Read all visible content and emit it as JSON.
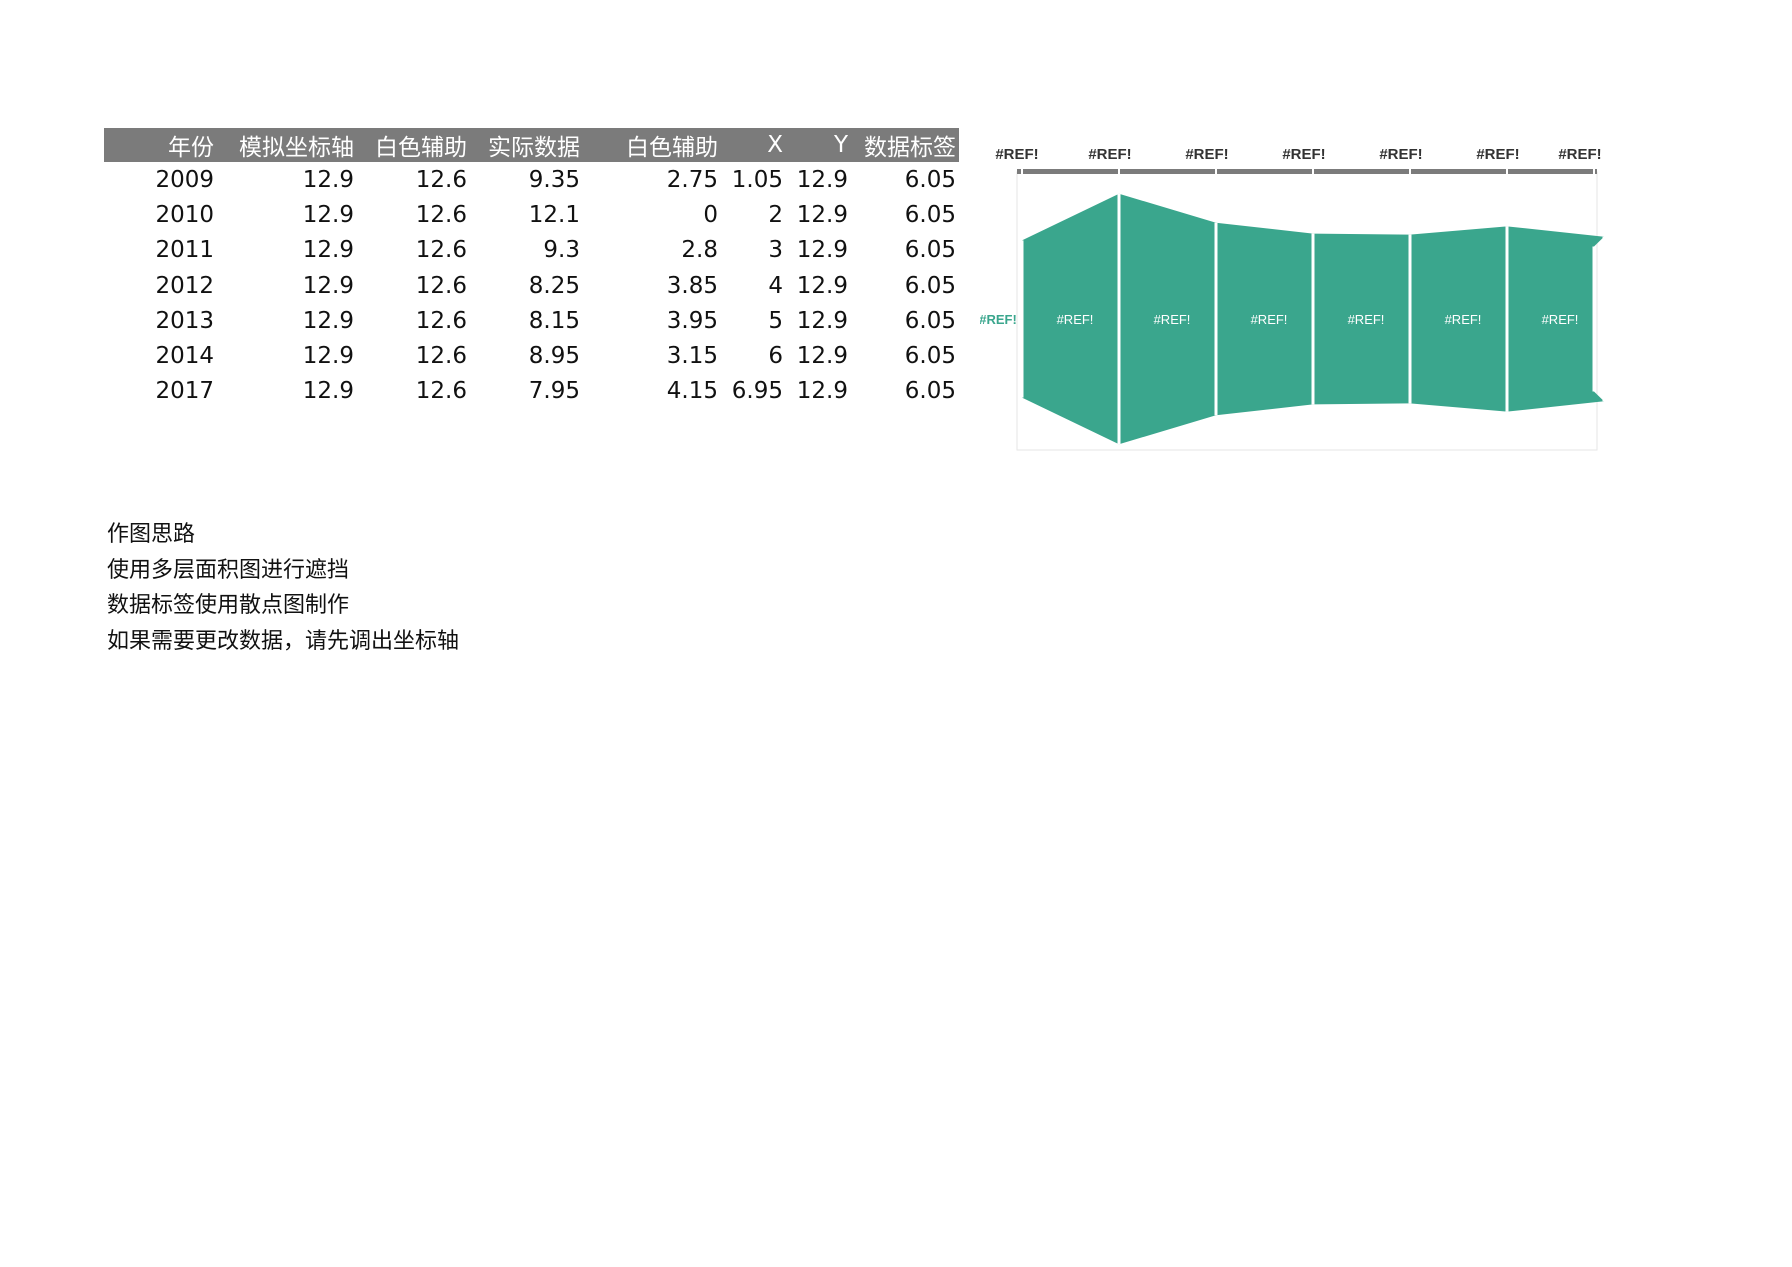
{
  "table": {
    "headers": [
      "年份",
      "模拟坐标轴",
      "白色辅助",
      "实际数据",
      "白色辅助",
      "X",
      "Y",
      "数据标签"
    ],
    "rows": [
      [
        "2009",
        "12.9",
        "12.6",
        "9.35",
        "2.75",
        "1.05",
        "12.9",
        "6.05"
      ],
      [
        "2010",
        "12.9",
        "12.6",
        "12.1",
        "0",
        "2",
        "12.9",
        "6.05"
      ],
      [
        "2011",
        "12.9",
        "12.6",
        "9.3",
        "2.8",
        "3",
        "12.9",
        "6.05"
      ],
      [
        "2012",
        "12.9",
        "12.6",
        "8.25",
        "3.85",
        "4",
        "12.9",
        "6.05"
      ],
      [
        "2013",
        "12.9",
        "12.6",
        "8.15",
        "3.95",
        "5",
        "12.9",
        "6.05"
      ],
      [
        "2014",
        "12.9",
        "12.6",
        "8.95",
        "3.15",
        "6",
        "12.9",
        "6.05"
      ],
      [
        "2017",
        "12.9",
        "12.6",
        "7.95",
        "4.15",
        "6.95",
        "12.9",
        "6.05"
      ]
    ]
  },
  "notes": {
    "line1": "作图思路",
    "line2": "使用多层面积图进行遮挡",
    "line3": "数据标签使用散点图制作",
    "line4": "如果需要更改数据，请先调出坐标轴"
  },
  "chart_data": {
    "type": "area",
    "x": [
      1,
      2,
      3,
      4,
      5,
      6,
      7
    ],
    "series": [
      {
        "values": [
          9.35,
          12.1,
          9.3,
          8.25,
          8.15,
          8.95,
          7.95
        ]
      }
    ],
    "top_labels": [
      "#REF!",
      "#REF!",
      "#REF!",
      "#REF!",
      "#REF!",
      "#REF!",
      "#REF!"
    ],
    "center_labels": [
      "#REF!",
      "#REF!",
      "#REF!",
      "#REF!",
      "#REF!",
      "#REF!",
      "#REF!"
    ],
    "ylim": [
      0,
      12.9
    ],
    "grid": false,
    "colors": {
      "area": "#3aa68d",
      "axis_bar": "#7b7b7b",
      "label_dark": "#333333",
      "label_light": "#ffffff",
      "border": "#e6e6e6"
    }
  }
}
